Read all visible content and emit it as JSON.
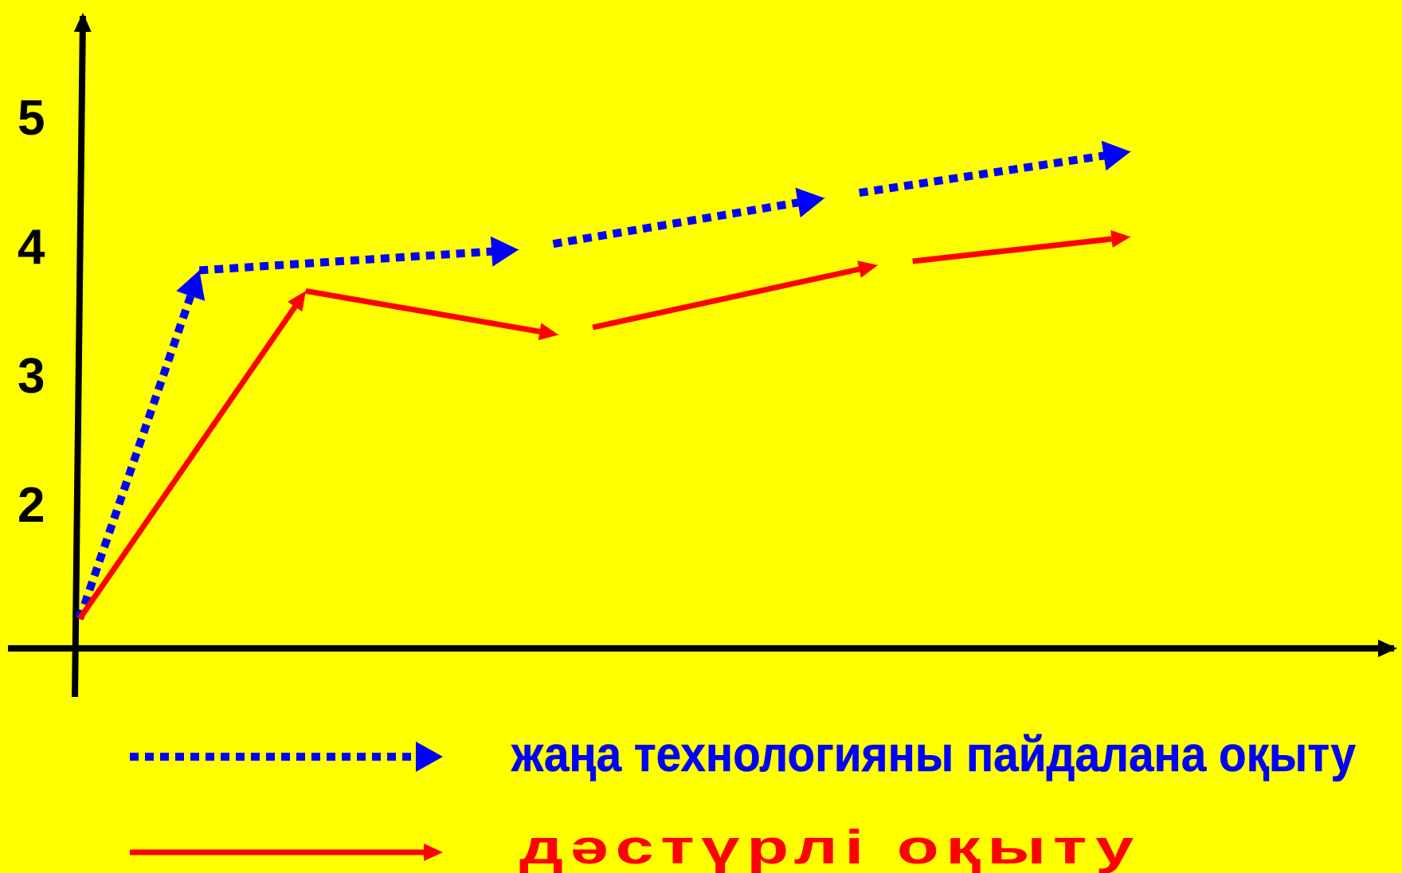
{
  "chart_data": {
    "type": "line",
    "title": "",
    "xlabel": "",
    "ylabel": "",
    "ylim": [
      1,
      5
    ],
    "y_ticks": [
      "2",
      "3",
      "4",
      "5"
    ],
    "grid": false,
    "legend_placement": "bottom",
    "background_color": "#FFFF00",
    "axis_color": "#000000",
    "series": [
      {
        "name": "жаңа технологияны пайдалана оқыту",
        "color": "#0000FF",
        "line_style": "dotted",
        "x": [
          0,
          0.9,
          3.3,
          5.6,
          7.9
        ],
        "y": [
          1.1,
          3.8,
          3.96,
          4.36,
          4.72
        ]
      },
      {
        "name": "дәстүрлі оқыту",
        "color": "#FF0000",
        "line_style": "solid",
        "x": [
          0,
          1.7,
          3.6,
          6.0,
          7.9
        ],
        "y": [
          1.1,
          3.64,
          3.3,
          3.84,
          4.06
        ]
      }
    ]
  }
}
